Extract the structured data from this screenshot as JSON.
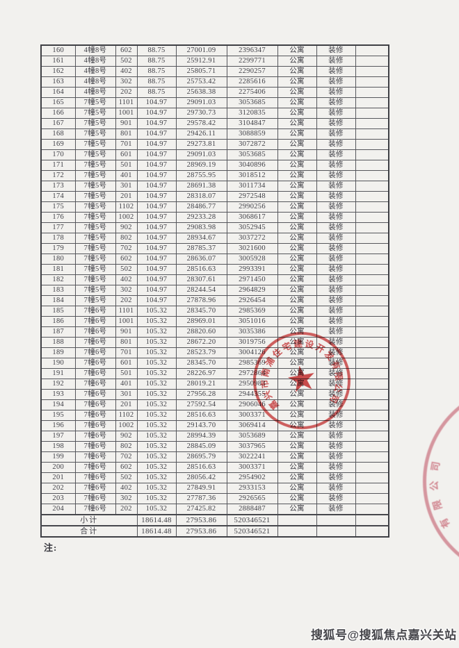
{
  "page": {
    "note_label": "注:",
    "background": "#f2f1ee"
  },
  "watermark": {
    "text": "搜狐号@搜狐焦点嘉兴关站"
  },
  "table": {
    "rows": [
      [
        "160",
        "4幢8号",
        "602",
        "88.75",
        "27001.09",
        "2396347",
        "公寓",
        "装修"
      ],
      [
        "161",
        "4幢8号",
        "502",
        "88.75",
        "25912.91",
        "2299771",
        "公寓",
        "装修"
      ],
      [
        "162",
        "4幢8号",
        "402",
        "88.75",
        "25805.71",
        "2290257",
        "公寓",
        "装修"
      ],
      [
        "163",
        "4幢8号",
        "302",
        "88.75",
        "25753.42",
        "2285616",
        "公寓",
        "装修"
      ],
      [
        "164",
        "4幢8号",
        "202",
        "88.75",
        "25638.38",
        "2275406",
        "公寓",
        "装修"
      ],
      [
        "165",
        "7幢5号",
        "1101",
        "104.97",
        "29091.03",
        "3053685",
        "公寓",
        "装修"
      ],
      [
        "166",
        "7幢5号",
        "1001",
        "104.97",
        "29730.73",
        "3120835",
        "公寓",
        "装修"
      ],
      [
        "167",
        "7幢5号",
        "901",
        "104.97",
        "29578.42",
        "3104847",
        "公寓",
        "装修"
      ],
      [
        "168",
        "7幢5号",
        "801",
        "104.97",
        "29426.11",
        "3088859",
        "公寓",
        "装修"
      ],
      [
        "169",
        "7幢5号",
        "701",
        "104.97",
        "29273.81",
        "3072872",
        "公寓",
        "装修"
      ],
      [
        "170",
        "7幢5号",
        "601",
        "104.97",
        "29091.03",
        "3053685",
        "公寓",
        "装修"
      ],
      [
        "171",
        "7幢5号",
        "501",
        "104.97",
        "28969.19",
        "3040896",
        "公寓",
        "装修"
      ],
      [
        "172",
        "7幢5号",
        "401",
        "104.97",
        "28755.95",
        "3018512",
        "公寓",
        "装修"
      ],
      [
        "173",
        "7幢5号",
        "301",
        "104.97",
        "28691.38",
        "3011734",
        "公寓",
        "装修"
      ],
      [
        "174",
        "7幢5号",
        "201",
        "104.97",
        "28318.07",
        "2972548",
        "公寓",
        "装修"
      ],
      [
        "175",
        "7幢5号",
        "1102",
        "104.97",
        "28486.77",
        "2990256",
        "公寓",
        "装修"
      ],
      [
        "176",
        "7幢5号",
        "1002",
        "104.97",
        "29233.28",
        "3068617",
        "公寓",
        "装修"
      ],
      [
        "177",
        "7幢5号",
        "902",
        "104.97",
        "29083.98",
        "3052945",
        "公寓",
        "装修"
      ],
      [
        "178",
        "7幢5号",
        "802",
        "104.97",
        "28934.67",
        "3037272",
        "公寓",
        "装修"
      ],
      [
        "179",
        "7幢5号",
        "702",
        "104.97",
        "28785.37",
        "3021600",
        "公寓",
        "装修"
      ],
      [
        "180",
        "7幢5号",
        "602",
        "104.97",
        "28636.07",
        "3005928",
        "公寓",
        "装修"
      ],
      [
        "181",
        "7幢5号",
        "502",
        "104.97",
        "28516.63",
        "2993391",
        "公寓",
        "装修"
      ],
      [
        "182",
        "7幢5号",
        "402",
        "104.97",
        "28307.61",
        "2971450",
        "公寓",
        "装修"
      ],
      [
        "183",
        "7幢5号",
        "302",
        "104.97",
        "28244.54",
        "2964829",
        "公寓",
        "装修"
      ],
      [
        "184",
        "7幢5号",
        "202",
        "104.97",
        "27878.96",
        "2926454",
        "公寓",
        "装修"
      ],
      [
        "185",
        "7幢6号",
        "1101",
        "105.32",
        "28345.70",
        "2985369",
        "公寓",
        "装修"
      ],
      [
        "186",
        "7幢6号",
        "1001",
        "105.32",
        "28969.01",
        "3051016",
        "公寓",
        "装修"
      ],
      [
        "187",
        "7幢6号",
        "901",
        "105.32",
        "28820.60",
        "3035386",
        "公寓",
        "装修"
      ],
      [
        "188",
        "7幢6号",
        "801",
        "105.32",
        "28672.20",
        "3019756",
        "公寓",
        "装修"
      ],
      [
        "189",
        "7幢6号",
        "701",
        "105.32",
        "28523.79",
        "3004126",
        "公寓",
        "装修"
      ],
      [
        "190",
        "7幢6号",
        "601",
        "105.32",
        "28345.70",
        "2985369",
        "公寓",
        "装修"
      ],
      [
        "191",
        "7幢6号",
        "501",
        "105.32",
        "28226.97",
        "2972864",
        "公寓",
        "装修"
      ],
      [
        "192",
        "7幢6号",
        "401",
        "105.32",
        "28019.21",
        "2950983",
        "公寓",
        "装修"
      ],
      [
        "193",
        "7幢6号",
        "301",
        "105.32",
        "27956.28",
        "2944355",
        "公寓",
        "装修"
      ],
      [
        "194",
        "7幢6号",
        "201",
        "105.32",
        "27592.54",
        "2906046",
        "公寓",
        "装修"
      ],
      [
        "195",
        "7幢6号",
        "1102",
        "105.32",
        "28516.63",
        "3003371",
        "公寓",
        "装修"
      ],
      [
        "196",
        "7幢6号",
        "1002",
        "105.32",
        "29143.70",
        "3069414",
        "公寓",
        "装修"
      ],
      [
        "197",
        "7幢6号",
        "902",
        "105.32",
        "28994.39",
        "3053689",
        "公寓",
        "装修"
      ],
      [
        "198",
        "7幢6号",
        "802",
        "105.32",
        "28845.09",
        "3037965",
        "公寓",
        "装修"
      ],
      [
        "199",
        "7幢6号",
        "702",
        "105.32",
        "28695.79",
        "3022241",
        "公寓",
        "装修"
      ],
      [
        "200",
        "7幢6号",
        "602",
        "105.32",
        "28516.63",
        "3003371",
        "公寓",
        "装修"
      ],
      [
        "201",
        "7幢6号",
        "502",
        "105.32",
        "28056.42",
        "2954902",
        "公寓",
        "装修"
      ],
      [
        "202",
        "7幢6号",
        "402",
        "105.32",
        "27849.91",
        "2933153",
        "公寓",
        "装修"
      ],
      [
        "203",
        "7幢6号",
        "302",
        "105.32",
        "27787.36",
        "2926565",
        "公寓",
        "装修"
      ],
      [
        "204",
        "7幢6号",
        "202",
        "105.32",
        "27425.82",
        "2888487",
        "公寓",
        "装修"
      ]
    ],
    "subtotal": {
      "label": "小计",
      "area": "18614.48",
      "price": "27953.86",
      "total": "520346521"
    },
    "grand_total": {
      "label": "合计",
      "area": "18614.48",
      "price": "27953.86",
      "total": "520346521"
    }
  },
  "stamp": {
    "ring_text": "嘉兴市南浦住宅建设开发有限公司",
    "star": "★",
    "color": "#c92829"
  },
  "stamp_partial": {
    "arc_text": "有限公司",
    "color": "#c44055"
  }
}
